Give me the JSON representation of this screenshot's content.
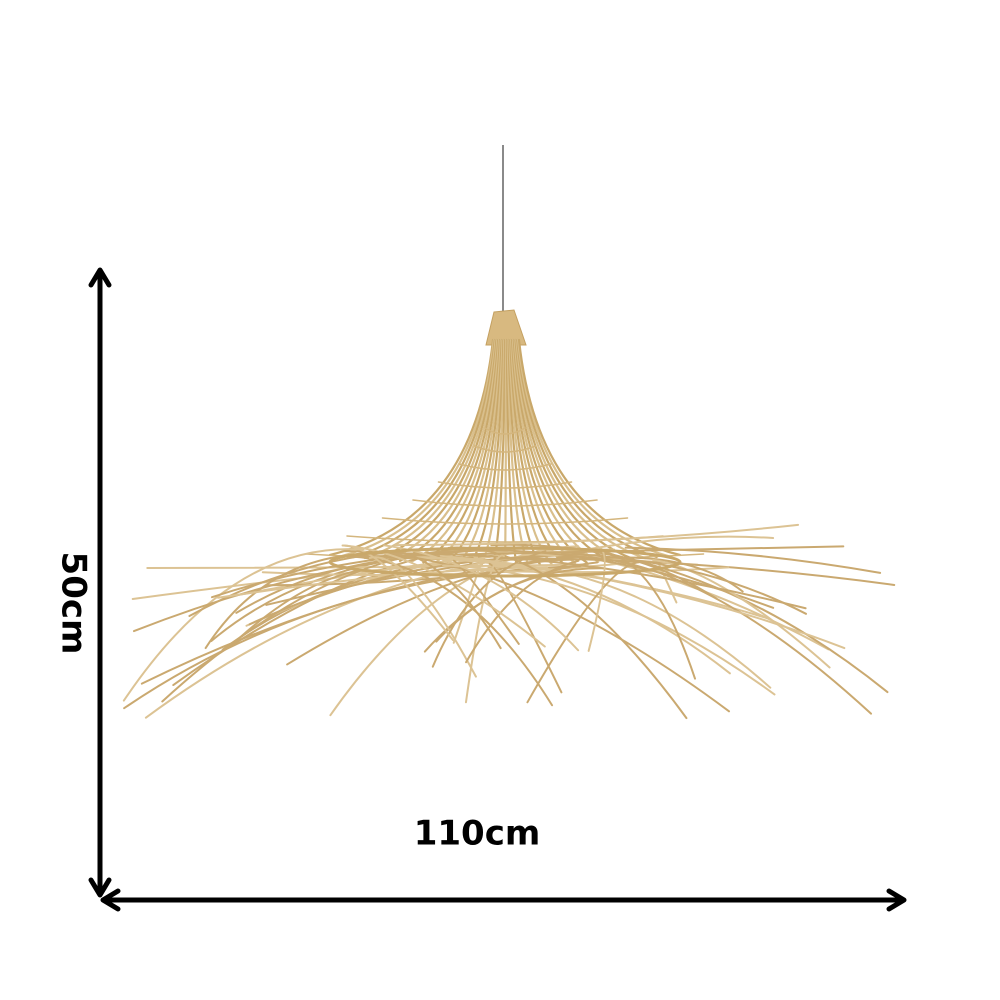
{
  "dimensions": {
    "height": "50cm",
    "width": "110cm"
  }
}
